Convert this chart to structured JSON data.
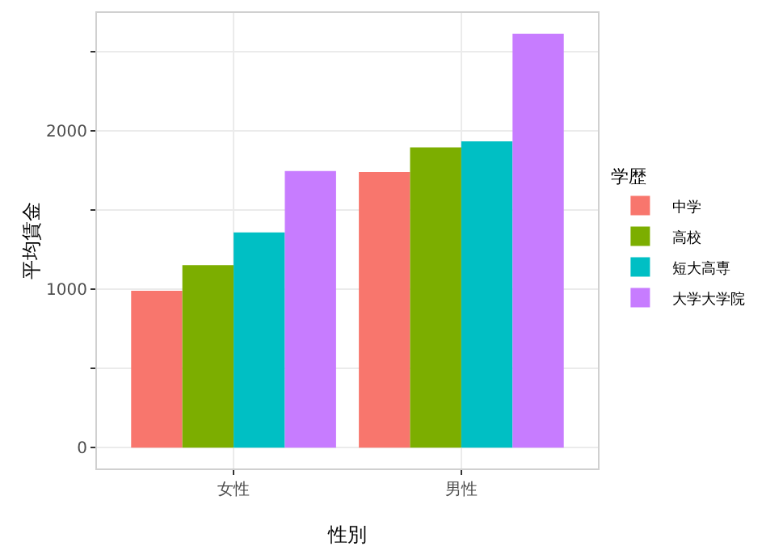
{
  "chart_data": {
    "type": "bar",
    "xlabel": "性別",
    "ylabel": "平均賃金",
    "legend_title": "学歴",
    "categories": [
      "女性",
      "男性"
    ],
    "series": [
      {
        "name": "中学",
        "color": "#f8766d",
        "values": [
          990,
          1740
        ]
      },
      {
        "name": "高校",
        "color": "#7cae00",
        "values": [
          1152,
          1895
        ]
      },
      {
        "name": "短大高専",
        "color": "#00bfc4",
        "values": [
          1359,
          1933
        ]
      },
      {
        "name": "大学大学院",
        "color": "#c77cff",
        "values": [
          1746,
          2613
        ]
      }
    ],
    "ylim": [
      -131,
      2744
    ],
    "yticks": [
      0,
      {
        "value": 500,
        "label": null
      },
      1000,
      {
        "value": 1500,
        "label": null
      },
      2000,
      {
        "value": 2500,
        "label": null
      }
    ],
    "grid": true,
    "legend": "right"
  }
}
